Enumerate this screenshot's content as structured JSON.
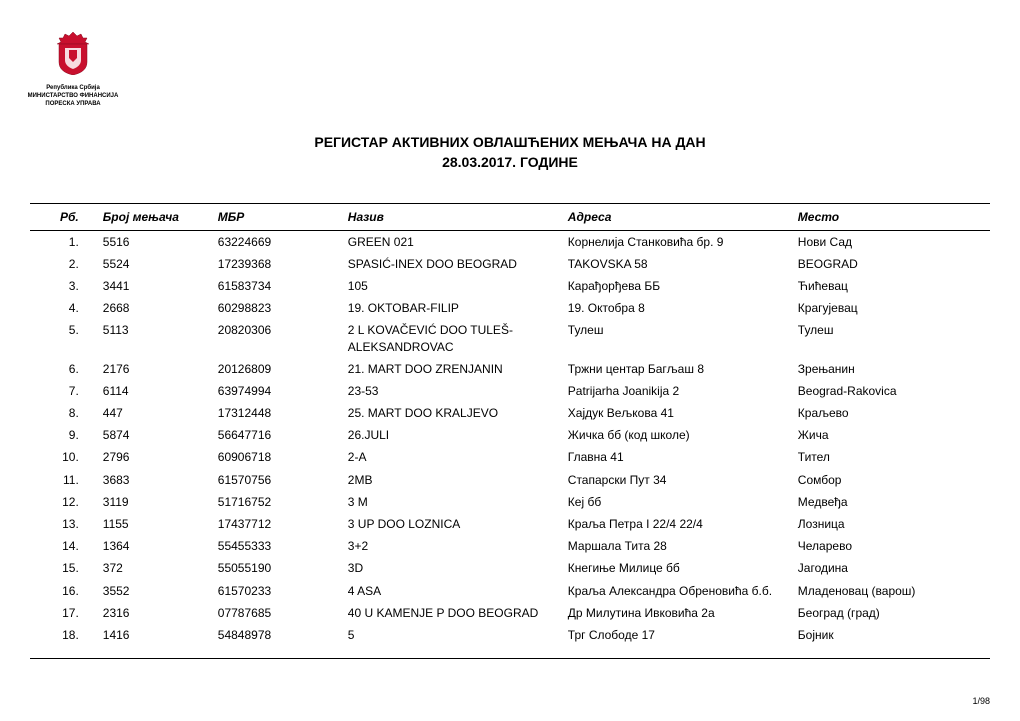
{
  "ministry": {
    "line1": "Република Србија",
    "line2": "МИНИСТАРСТВО ФИНАНСИЈА",
    "line3": "ПОРЕСКА УПРАВА"
  },
  "emblem": {
    "shield_color": "#c8102e",
    "crown_color": "#c8102e",
    "stroke_color": "#8a0a1f"
  },
  "title": {
    "line1": "РЕГИСТАР АКТИВНИХ ОВЛАШЋЕНИХ МЕЊАЧА НА ДАН",
    "line2": "28.03.2017. ГОДИНЕ"
  },
  "columns": {
    "rb": "Рб.",
    "broj": "Број мењача",
    "mbr": "МБР",
    "naziv": "Назив",
    "adresa": "Адреса",
    "mesto": "Место"
  },
  "rows": [
    {
      "rb": "1.",
      "broj": "5516",
      "mbr": "63224669",
      "naziv": "GREEN 021",
      "adresa": "Корнелија Станковића бр. 9",
      "mesto": "Нови Сад"
    },
    {
      "rb": "2.",
      "broj": "5524",
      "mbr": "17239368",
      "naziv": "SPASIĆ-INEX DOO BEOGRAD",
      "adresa": "TAKOVSKA 58",
      "mesto": "BEOGRAD"
    },
    {
      "rb": "3.",
      "broj": "3441",
      "mbr": "61583734",
      "naziv": "105",
      "adresa": "Карађорђева ББ",
      "mesto": "Ћићевац"
    },
    {
      "rb": "4.",
      "broj": "2668",
      "mbr": "60298823",
      "naziv": "19. OKTOBAR-FILIP",
      "adresa": "19. Октобра 8",
      "mesto": "Крагујевац"
    },
    {
      "rb": "5.",
      "broj": "5113",
      "mbr": "20820306",
      "naziv": "2 L KOVAČEVIĆ DOO TULEŠ-ALEKSANDROVAC",
      "adresa": "Тулеш",
      "mesto": "Тулеш"
    },
    {
      "rb": "6.",
      "broj": "2176",
      "mbr": "20126809",
      "naziv": "21. MART DOO ZRENJANIN",
      "adresa": "Тржни центар Багљаш 8",
      "mesto": "Зрењанин"
    },
    {
      "rb": "7.",
      "broj": "6114",
      "mbr": "63974994",
      "naziv": "23-53",
      "adresa": "Patrijarha Joanikija 2",
      "mesto": "Beograd-Rakovica"
    },
    {
      "rb": "8.",
      "broj": "447",
      "mbr": "17312448",
      "naziv": "25. MART DOO KRALJEVO",
      "adresa": "Хајдук Вељкова 41",
      "mesto": "Краљево"
    },
    {
      "rb": "9.",
      "broj": "5874",
      "mbr": "56647716",
      "naziv": "26.JULI",
      "adresa": "Жичка бб (код школе)",
      "mesto": "Жича"
    },
    {
      "rb": "10.",
      "broj": "2796",
      "mbr": "60906718",
      "naziv": "2-A",
      "adresa": "Главна 41",
      "mesto": "Тител"
    },
    {
      "rb": "11.",
      "broj": "3683",
      "mbr": "61570756",
      "naziv": "2MB",
      "adresa": "Стапарски Пут 34",
      "mesto": "Сомбор"
    },
    {
      "rb": "12.",
      "broj": "3119",
      "mbr": "51716752",
      "naziv": "3 M",
      "adresa": "Кеј бб",
      "mesto": "Медвеђа"
    },
    {
      "rb": "13.",
      "broj": "1155",
      "mbr": "17437712",
      "naziv": "3 UP DOO LOZNICA",
      "adresa": "Краља Петра I 22/4 22/4",
      "mesto": "Лозница"
    },
    {
      "rb": "14.",
      "broj": "1364",
      "mbr": "55455333",
      "naziv": "3+2",
      "adresa": "Маршала Тита 28",
      "mesto": "Челарево"
    },
    {
      "rb": "15.",
      "broj": "372",
      "mbr": "55055190",
      "naziv": "3D",
      "adresa": "Кнегиње Милице бб",
      "mesto": "Јагодина"
    },
    {
      "rb": "16.",
      "broj": "3552",
      "mbr": "61570233",
      "naziv": "4 ASA",
      "adresa": "Краља Александра Обреновића б.б.",
      "mesto": "Младеновац (варош)"
    },
    {
      "rb": "17.",
      "broj": "2316",
      "mbr": "07787685",
      "naziv": "40 U KAMENJE P DOO BEOGRAD",
      "adresa": "Др  Милутина Ивковића 2а",
      "mesto": "Београд (град)"
    },
    {
      "rb": "18.",
      "broj": "1416",
      "mbr": "54848978",
      "naziv": "5",
      "adresa": "Трг Слободе 17",
      "mesto": "Бојник"
    }
  ],
  "page_number": "1/98"
}
